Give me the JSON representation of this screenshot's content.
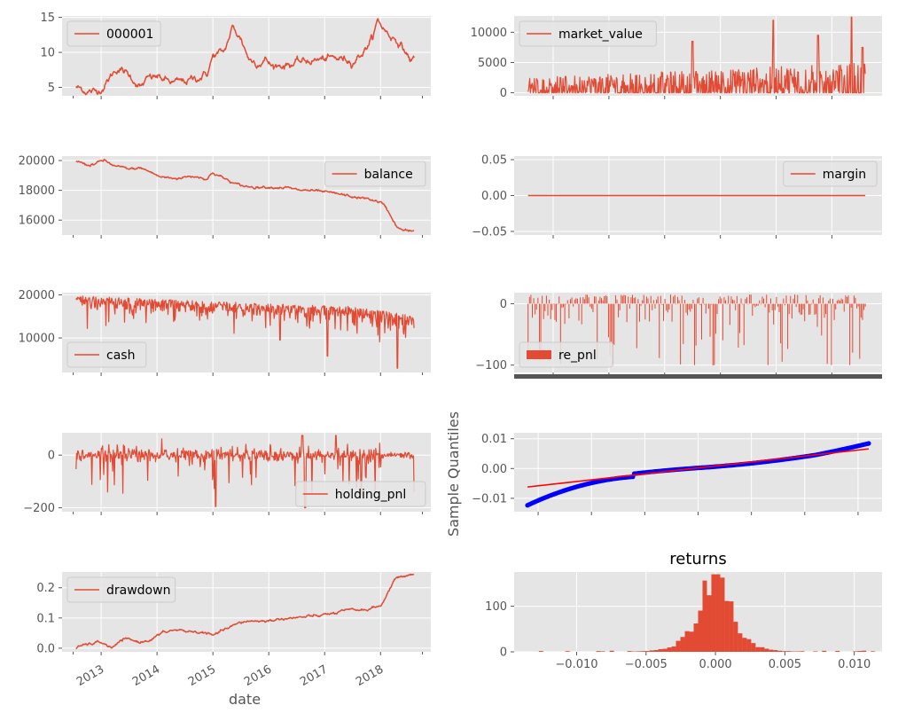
{
  "colors": {
    "background": "#E5E5E5",
    "grid": "#FFFFFF",
    "series": "#E24A33",
    "qq_points": "#0000FF",
    "qq_line": "#FF0000",
    "text": "#555555"
  },
  "chart_data": [
    {
      "id": "p000001",
      "type": "line",
      "legend": "000001",
      "legend_position": "top-left",
      "ylim": [
        3.8,
        15.2
      ],
      "yticks": [
        5,
        10,
        15
      ],
      "ytick_labels": [
        "5",
        "10",
        "15"
      ],
      "x_dates": true,
      "anchors": [
        [
          2012.55,
          5.0
        ],
        [
          2012.7,
          4.6
        ],
        [
          2012.9,
          4.3
        ],
        [
          2013.05,
          5.2
        ],
        [
          2013.2,
          6.9
        ],
        [
          2013.3,
          7.8
        ],
        [
          2013.45,
          7.0
        ],
        [
          2013.6,
          6.0
        ],
        [
          2013.7,
          5.0
        ],
        [
          2013.85,
          6.2
        ],
        [
          2014.0,
          6.5
        ],
        [
          2014.15,
          6.0
        ],
        [
          2014.3,
          5.6
        ],
        [
          2014.5,
          5.8
        ],
        [
          2014.7,
          6.3
        ],
        [
          2014.9,
          7.0
        ],
        [
          2015.0,
          9.5
        ],
        [
          2015.2,
          10.0
        ],
        [
          2015.35,
          13.5
        ],
        [
          2015.5,
          12.0
        ],
        [
          2015.65,
          9.0
        ],
        [
          2015.8,
          8.6
        ],
        [
          2015.95,
          9.0
        ],
        [
          2016.05,
          8.0
        ],
        [
          2016.3,
          8.3
        ],
        [
          2016.6,
          8.6
        ],
        [
          2016.8,
          8.9
        ],
        [
          2017.0,
          9.0
        ],
        [
          2017.3,
          9.1
        ],
        [
          2017.5,
          8.8
        ],
        [
          2017.7,
          10.2
        ],
        [
          2017.85,
          12.0
        ],
        [
          2017.95,
          14.5
        ],
        [
          2018.05,
          13.5
        ],
        [
          2018.15,
          12.5
        ],
        [
          2018.3,
          11.8
        ],
        [
          2018.45,
          10.0
        ],
        [
          2018.55,
          8.8
        ],
        [
          2018.6,
          9.2
        ]
      ],
      "noise": 0.35
    },
    {
      "id": "market_value",
      "type": "line",
      "legend": "market_value",
      "legend_position": "top-left",
      "ylim": [
        -500,
        12700
      ],
      "yticks": [
        0,
        5000,
        10000
      ],
      "ytick_labels": [
        "0",
        "5000",
        "10000"
      ],
      "x_dates": false,
      "note": "spiky trading position values between 0 and ~12500",
      "spikes": [
        [
          2015.5,
          8500
        ],
        [
          2016.95,
          12000
        ],
        [
          2017.75,
          9500
        ],
        [
          2018.35,
          12500
        ],
        [
          2018.55,
          7500
        ]
      ]
    },
    {
      "id": "balance",
      "type": "line",
      "legend": "balance",
      "legend_position": "top-right",
      "ylim": [
        15000,
        20300
      ],
      "yticks": [
        16000,
        18000,
        20000
      ],
      "ytick_labels": [
        "16000",
        "18000",
        "20000"
      ],
      "x_dates": true,
      "anchors": [
        [
          2012.55,
          20000
        ],
        [
          2012.75,
          19700
        ],
        [
          2012.9,
          19800
        ],
        [
          2013.05,
          20000
        ],
        [
          2013.25,
          19600
        ],
        [
          2013.5,
          19400
        ],
        [
          2013.7,
          19500
        ],
        [
          2013.9,
          19200
        ],
        [
          2014.05,
          18900
        ],
        [
          2014.3,
          18800
        ],
        [
          2014.5,
          18900
        ],
        [
          2014.7,
          18950
        ],
        [
          2014.9,
          18800
        ],
        [
          2015.0,
          19200
        ],
        [
          2015.2,
          18800
        ],
        [
          2015.4,
          18400
        ],
        [
          2015.6,
          18250
        ],
        [
          2016.0,
          18250
        ],
        [
          2016.3,
          18200
        ],
        [
          2016.5,
          18000
        ],
        [
          2016.7,
          18000
        ],
        [
          2016.9,
          17900
        ],
        [
          2017.1,
          17800
        ],
        [
          2017.3,
          17700
        ],
        [
          2017.5,
          17550
        ],
        [
          2017.8,
          17400
        ],
        [
          2018.0,
          17200
        ],
        [
          2018.1,
          16800
        ],
        [
          2018.2,
          16200
        ],
        [
          2018.3,
          15500
        ],
        [
          2018.4,
          15300
        ],
        [
          2018.6,
          15250
        ]
      ],
      "noise": 60
    },
    {
      "id": "margin",
      "type": "line",
      "legend": "margin",
      "legend_position": "top-right",
      "ylim": [
        -0.055,
        0.055
      ],
      "yticks": [
        -0.05,
        0.0,
        0.05
      ],
      "ytick_labels": [
        "−0.05",
        "0.00",
        "0.05"
      ],
      "x_dates": false,
      "constant": 0.0
    },
    {
      "id": "cash",
      "type": "line",
      "legend": "cash",
      "legend_position": "bottom-left",
      "ylim": [
        2000,
        20500
      ],
      "yticks": [
        10000,
        20000
      ],
      "ytick_labels": [
        "10000",
        "20000"
      ],
      "x_dates": true,
      "base": [
        [
          2012.55,
          19800
        ],
        [
          2013.5,
          19300
        ],
        [
          2014.5,
          18800
        ],
        [
          2015.5,
          18200
        ],
        [
          2016.5,
          17800
        ],
        [
          2017.5,
          17300
        ],
        [
          2018.6,
          15200
        ]
      ],
      "dips_min": [
        [
          2016.2,
          9500
        ],
        [
          2017.05,
          5800
        ],
        [
          2018.3,
          3000
        ]
      ]
    },
    {
      "id": "re_pnl",
      "type": "bar",
      "legend": "re_pnl",
      "legend_position": "bottom-left",
      "ylim": [
        -112,
        18
      ],
      "yticks": [
        -100,
        0
      ],
      "ytick_labels": [
        "−100",
        "0"
      ],
      "x_dates": false,
      "note": "realized pnl bars, mostly small; deepest around −100"
    },
    {
      "id": "holding_pnl",
      "type": "line",
      "legend": "holding_pnl",
      "legend_position": "bottom-right",
      "ylim": [
        -215,
        85
      ],
      "yticks": [
        -200,
        0
      ],
      "ytick_labels": [
        "−200",
        "0"
      ],
      "x_dates": true,
      "extremes": [
        [
          2015.05,
          -195
        ],
        [
          2016.65,
          -200
        ],
        [
          2016.6,
          75
        ],
        [
          2017.2,
          75
        ]
      ]
    },
    {
      "id": "qqplot",
      "type": "scatter",
      "ylabel": "Sample Quantiles",
      "ylim": [
        -0.0145,
        0.012
      ],
      "xlim": [
        -3.45,
        3.45
      ],
      "yticks": [
        -0.01,
        0.0,
        0.01
      ],
      "ytick_labels": [
        "−0.01",
        "0.00",
        "0.01"
      ],
      "x_dates": false,
      "line": {
        "intercept": 0.0002,
        "slope": 0.002
      }
    },
    {
      "id": "drawdown",
      "type": "line",
      "legend": "drawdown",
      "legend_position": "top-left",
      "ylim": [
        -0.012,
        0.252
      ],
      "yticks": [
        0.0,
        0.1,
        0.2
      ],
      "ytick_labels": [
        "0.0",
        "0.1",
        "0.2"
      ],
      "x_dates": true,
      "anchors": [
        [
          2012.55,
          0.0
        ],
        [
          2012.7,
          0.01
        ],
        [
          2013.0,
          0.02
        ],
        [
          2013.2,
          0.0
        ],
        [
          2013.4,
          0.03
        ],
        [
          2013.7,
          0.02
        ],
        [
          2013.9,
          0.03
        ],
        [
          2014.1,
          0.05
        ],
        [
          2014.3,
          0.06
        ],
        [
          2014.6,
          0.055
        ],
        [
          2014.9,
          0.05
        ],
        [
          2015.0,
          0.04
        ],
        [
          2015.2,
          0.06
        ],
        [
          2015.45,
          0.08
        ],
        [
          2015.6,
          0.09
        ],
        [
          2016.0,
          0.09
        ],
        [
          2016.3,
          0.1
        ],
        [
          2016.5,
          0.1
        ],
        [
          2016.8,
          0.105
        ],
        [
          2017.0,
          0.11
        ],
        [
          2017.3,
          0.12
        ],
        [
          2017.5,
          0.125
        ],
        [
          2017.8,
          0.13
        ],
        [
          2018.0,
          0.14
        ],
        [
          2018.1,
          0.17
        ],
        [
          2018.2,
          0.21
        ],
        [
          2018.3,
          0.235
        ],
        [
          2018.45,
          0.24
        ],
        [
          2018.6,
          0.245
        ]
      ],
      "noise": 0.003
    },
    {
      "id": "returns",
      "type": "histogram",
      "title": "returns",
      "ylim": [
        0,
        175
      ],
      "yticks": [
        0,
        100
      ],
      "ytick_labels": [
        "0",
        "100"
      ],
      "xlim": [
        -0.0145,
        0.012
      ],
      "xticks": [
        -0.01,
        -0.005,
        0.0,
        0.005,
        0.01
      ],
      "xtick_labels": [
        "−0.010",
        "−0.005",
        "0.000",
        "0.005",
        "0.010"
      ],
      "peak": 170
    }
  ],
  "date_axis": {
    "label": "date",
    "xlim": [
      2012.3,
      2018.9
    ],
    "ticks": [
      2013,
      2014,
      2015,
      2016,
      2017,
      2018
    ],
    "tick_labels": [
      "2013",
      "2014",
      "2015",
      "2016",
      "2017",
      "2018"
    ]
  }
}
